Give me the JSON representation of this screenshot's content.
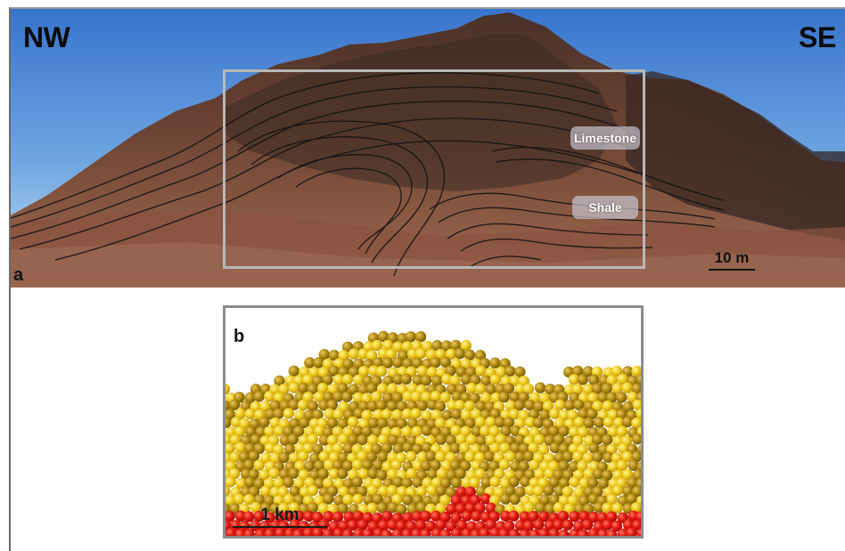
{
  "figure": {
    "panel_a": {
      "panel_label": "a",
      "direction_left": "NW",
      "direction_right": "SE",
      "layer_labels": {
        "upper": "Limestone",
        "lower": "Shale"
      },
      "scale_bar": "10 m",
      "icon": "outcrop-photo-fold"
    },
    "panel_b": {
      "panel_label": "b",
      "scale_bar": "1 km",
      "icon": "particle-model-fold"
    }
  },
  "colors": {
    "sky_top": "#3d7fd3",
    "sky_bottom": "#c4ddf4",
    "rock": "#6b4434",
    "particle_yellow": "#e9c11a",
    "particle_ochre": "#a9820e",
    "particle_red": "#e01410",
    "inset_border": "#b8b8b8"
  }
}
